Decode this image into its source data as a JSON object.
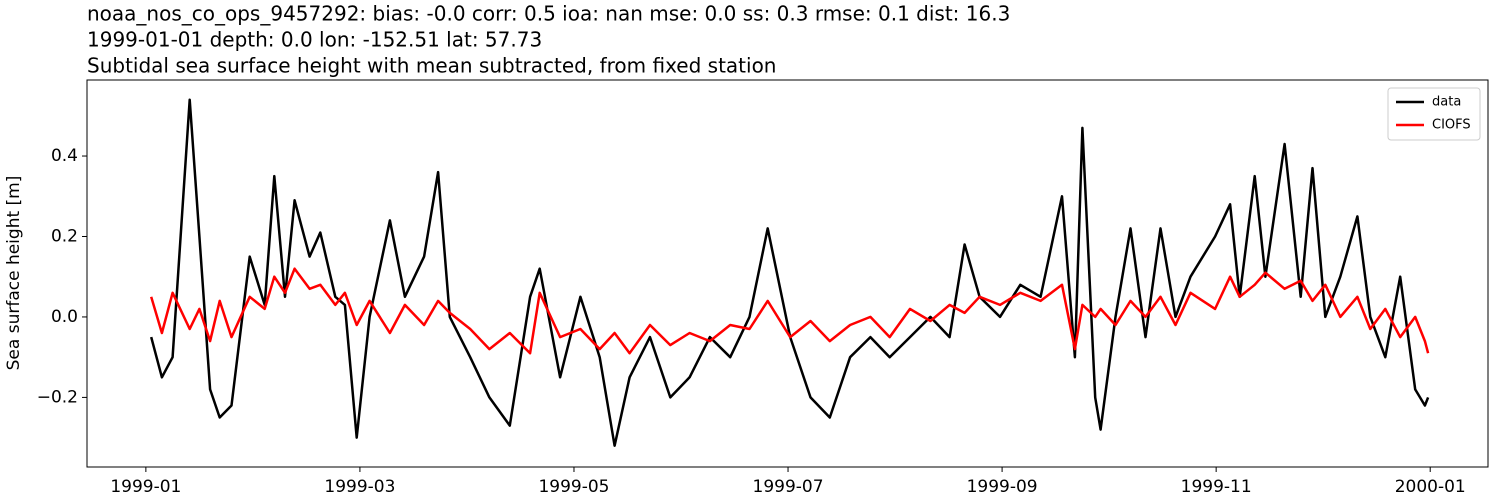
{
  "chart_data": {
    "type": "line",
    "title": "noaa_nos_co_ops_9457292: bias: -0.0  corr: 0.5  ioa: nan  mse: 0.0  ss: 0.3  rmse: 0.1  dist: 16.3",
    "subtitle": "1999-01-01 depth: 0.0 lon: -152.51 lat: 57.73",
    "subtitle2": "Subtidal sea surface height with mean subtracted, from fixed station",
    "ylabel": "Sea surface height [m]",
    "x": [
      0.05,
      0.15,
      0.25,
      0.41,
      0.5,
      0.6,
      0.69,
      0.8,
      0.97,
      1.11,
      1.2,
      1.3,
      1.39,
      1.53,
      1.63,
      1.77,
      1.86,
      1.97,
      2.09,
      2.28,
      2.42,
      2.6,
      2.73,
      2.84,
      3.03,
      3.21,
      3.4,
      3.59,
      3.68,
      3.87,
      4.06,
      4.24,
      4.38,
      4.52,
      4.71,
      4.9,
      5.08,
      5.27,
      5.46,
      5.64,
      5.81,
      6.02,
      6.21,
      6.39,
      6.58,
      6.77,
      6.95,
      7.14,
      7.33,
      7.51,
      7.65,
      7.79,
      7.98,
      8.17,
      8.36,
      8.56,
      8.68,
      8.75,
      8.87,
      8.92,
      9.06,
      9.2,
      9.34,
      9.48,
      9.62,
      9.76,
      9.99,
      10.13,
      10.22,
      10.36,
      10.46,
      10.64,
      10.79,
      10.9,
      11.02,
      11.16,
      11.32,
      11.44,
      11.58,
      11.72,
      11.86,
      11.95,
      11.98
    ],
    "series": [
      {
        "name": "data",
        "color": "#000000",
        "values": [
          -0.05,
          -0.15,
          -0.1,
          0.54,
          0.2,
          -0.18,
          -0.25,
          -0.22,
          0.15,
          0.03,
          0.35,
          0.05,
          0.29,
          0.15,
          0.21,
          0.05,
          0.03,
          -0.3,
          0.0,
          0.24,
          0.05,
          0.15,
          0.36,
          0.0,
          -0.1,
          -0.2,
          -0.27,
          0.05,
          0.12,
          -0.15,
          0.05,
          -0.1,
          -0.32,
          -0.15,
          -0.05,
          -0.2,
          -0.15,
          -0.05,
          -0.1,
          0.0,
          0.22,
          -0.05,
          -0.2,
          -0.25,
          -0.1,
          -0.05,
          -0.1,
          -0.05,
          0.0,
          -0.05,
          0.18,
          0.05,
          0.0,
          0.08,
          0.05,
          0.3,
          -0.1,
          0.47,
          -0.2,
          -0.28,
          0.0,
          0.22,
          -0.05,
          0.22,
          0.0,
          0.1,
          0.2,
          0.28,
          0.05,
          0.35,
          0.1,
          0.43,
          0.05,
          0.37,
          0.0,
          0.1,
          0.25,
          0.0,
          -0.1,
          0.1,
          -0.18,
          -0.22,
          -0.2
        ]
      },
      {
        "name": "CIOFS",
        "color": "#ff0000",
        "values": [
          0.05,
          -0.04,
          0.06,
          -0.03,
          0.02,
          -0.06,
          0.04,
          -0.05,
          0.05,
          0.02,
          0.1,
          0.06,
          0.12,
          0.07,
          0.08,
          0.03,
          0.06,
          -0.02,
          0.04,
          -0.04,
          0.03,
          -0.02,
          0.04,
          0.01,
          -0.03,
          -0.08,
          -0.04,
          -0.09,
          0.06,
          -0.05,
          -0.03,
          -0.08,
          -0.04,
          -0.09,
          -0.02,
          -0.07,
          -0.04,
          -0.06,
          -0.02,
          -0.03,
          0.04,
          -0.05,
          -0.01,
          -0.06,
          -0.02,
          0.0,
          -0.05,
          0.02,
          -0.01,
          0.03,
          0.01,
          0.05,
          0.03,
          0.06,
          0.04,
          0.08,
          -0.08,
          0.03,
          0.0,
          0.02,
          -0.02,
          0.04,
          0.0,
          0.05,
          -0.02,
          0.06,
          0.02,
          0.1,
          0.05,
          0.08,
          0.11,
          0.07,
          0.09,
          0.04,
          0.08,
          0.0,
          0.05,
          -0.03,
          0.02,
          -0.05,
          0.0,
          -0.06,
          -0.09
        ]
      }
    ],
    "xlim": [
      -0.55,
      12.54
    ],
    "xticks": [
      {
        "value": 0,
        "label": "1999-01"
      },
      {
        "value": 2,
        "label": "1999-03"
      },
      {
        "value": 4,
        "label": "1999-05"
      },
      {
        "value": 6,
        "label": "1999-07"
      },
      {
        "value": 8,
        "label": "1999-09"
      },
      {
        "value": 10,
        "label": "1999-11"
      },
      {
        "value": 12,
        "label": "2000-01"
      }
    ],
    "ylim": [
      -0.373,
      0.589
    ],
    "yticks": [
      {
        "value": -0.2,
        "label": "−0.2"
      },
      {
        "value": 0,
        "label": "0.0"
      },
      {
        "value": 0.2,
        "label": "0.2"
      },
      {
        "value": 0.4,
        "label": "0.4"
      }
    ],
    "legend": "upper right"
  }
}
